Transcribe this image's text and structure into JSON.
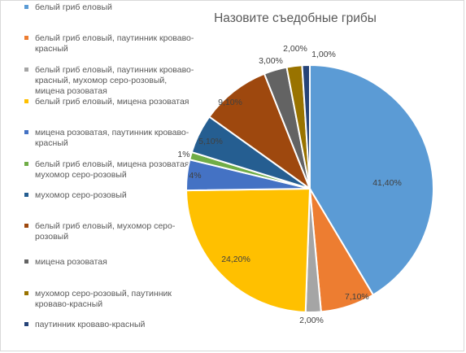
{
  "chart_data": {
    "type": "pie",
    "title": "Назовите съедобные грибы",
    "legend_position": "left",
    "slices": [
      {
        "name": "белый гриб еловый",
        "value": 41.4,
        "label": "41,40%",
        "color": "#5b9bd5"
      },
      {
        "name": "белый гриб еловый, паутинник кроваво-красный",
        "value": 7.1,
        "label": "7,10%",
        "color": "#ed7d31"
      },
      {
        "name": "белый гриб еловый, паутинник кроваво-красный, мухомор серо-розовый, мицена розоватая",
        "value": 2.0,
        "label": "2,00%",
        "color": "#a5a5a5"
      },
      {
        "name": "белый гриб еловый, мицена розоватая",
        "value": 24.2,
        "label": "24,20%",
        "color": "#ffc000"
      },
      {
        "name": "мицена розоватая, паутинник кроваво-красный",
        "value": 4.0,
        "label": "4%",
        "color": "#4472c4"
      },
      {
        "name": "белый гриб еловый, мицена розоватая, мухомор серо-розовый",
        "value": 1.0,
        "label": "1%",
        "color": "#70ad47"
      },
      {
        "name": "мухомор серо-розовый",
        "value": 5.1,
        "label": "5,10%",
        "color": "#255e91"
      },
      {
        "name": "белый гриб еловый, мухомор серо-розовый",
        "value": 9.1,
        "label": "9,10%",
        "color": "#9e480e"
      },
      {
        "name": "мицена розоватая",
        "value": 3.0,
        "label": "3,00%",
        "color": "#636363"
      },
      {
        "name": "мухомор серо-розовый, паутинник кроваво-красный",
        "value": 2.0,
        "label": "2,00%",
        "color": "#997300"
      },
      {
        "name": "паутинник кроваво-красный",
        "value": 1.0,
        "label": "1,00%",
        "color": "#264478"
      }
    ]
  }
}
